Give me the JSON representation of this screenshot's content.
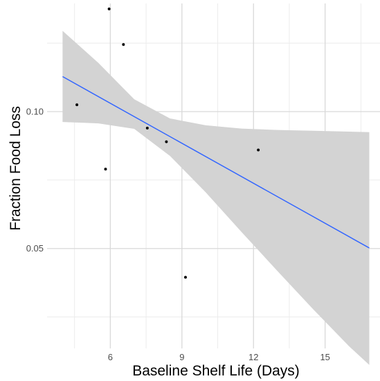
{
  "chart_data": {
    "type": "scatter",
    "title": "",
    "xlabel": "Baseline Shelf Life (Days)",
    "ylabel": "Fraction Food Loss",
    "xlim": [
      3.35,
      17.3
    ],
    "ylim": [
      0.0135,
      0.1395
    ],
    "x_ticks": [
      6,
      9,
      12,
      15
    ],
    "x_tick_labels": [
      "6",
      "9",
      "12",
      "15"
    ],
    "x_minor_ticks": [
      4.5,
      7.5,
      10.5,
      13.5,
      16.5
    ],
    "y_ticks": [
      0.05,
      0.1
    ],
    "y_tick_labels": [
      "0.05",
      "0.10"
    ],
    "y_minor_ticks": [
      0.025,
      0.075,
      0.125
    ],
    "grid": true,
    "points": [
      {
        "x": 4.6,
        "y": 0.1025
      },
      {
        "x": 5.8,
        "y": 0.079
      },
      {
        "x": 5.95,
        "y": 0.1375
      },
      {
        "x": 6.55,
        "y": 0.1245
      },
      {
        "x": 7.55,
        "y": 0.094
      },
      {
        "x": 8.35,
        "y": 0.089
      },
      {
        "x": 9.15,
        "y": 0.0395
      },
      {
        "x": 12.2,
        "y": 0.086
      }
    ],
    "trend_line": {
      "method": "linear regression",
      "start": {
        "x": 4.0,
        "y": 0.1128
      },
      "end": {
        "x": 16.85,
        "y": 0.0502
      }
    },
    "confidence_band": {
      "x": [
        4.0,
        5.5,
        7.0,
        8.5,
        10.0,
        11.5,
        13.0,
        14.5,
        16.0,
        16.85
      ],
      "upper": [
        0.1295,
        0.1178,
        0.1045,
        0.0975,
        0.095,
        0.0938,
        0.0933,
        0.093,
        0.0927,
        0.0925
      ],
      "lower": [
        0.0962,
        0.0957,
        0.0937,
        0.0838,
        0.0705,
        0.056,
        0.0418,
        0.0278,
        0.0143,
        0.0075
      ]
    },
    "colors": {
      "line": "#3366ff",
      "band": "#d3d3d3",
      "point": "#000000",
      "grid_major": "#d9d9d9",
      "grid_minor": "#ececec"
    }
  }
}
